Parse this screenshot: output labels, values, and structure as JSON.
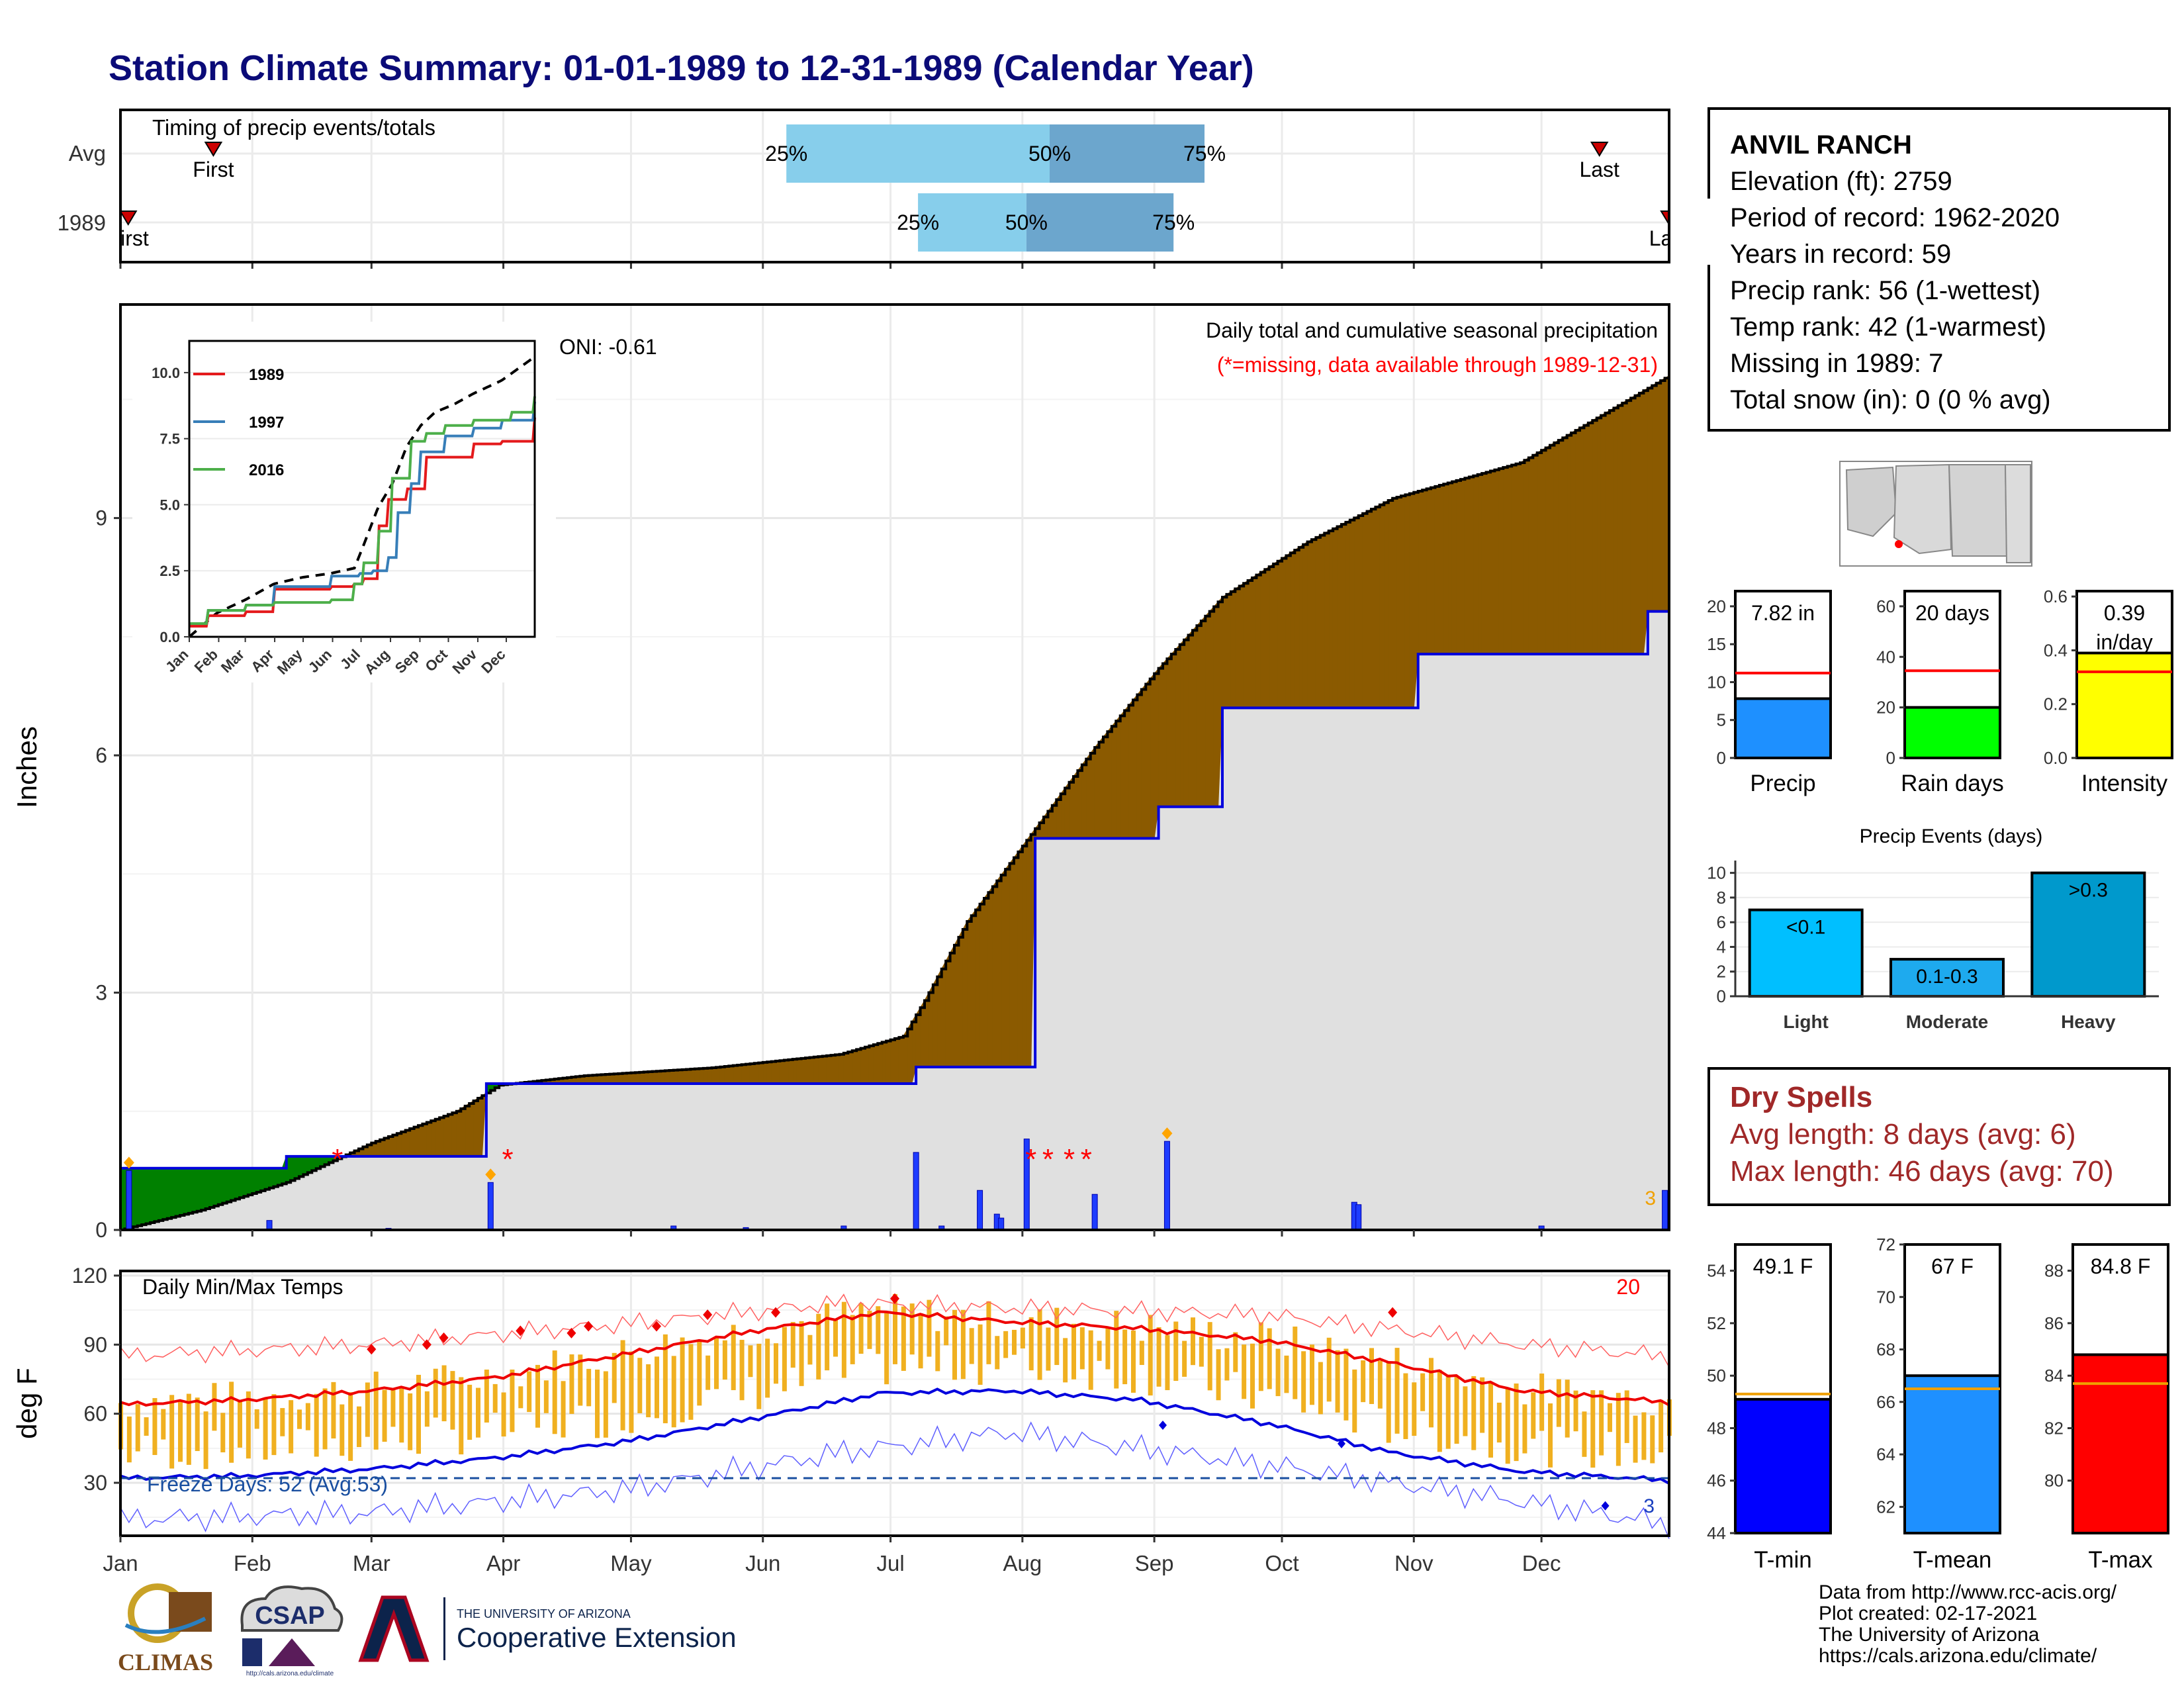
{
  "page_title": "Station Climate Summary: 01-01-1989 to 12-31-1989 (Calendar Year)",
  "timing_panel": {
    "title": "Timing of precip events/totals",
    "rows": [
      {
        "label": "Avg",
        "first_label": "First",
        "last_label": "Last",
        "first_day": 0.06,
        "last_day": 0.955,
        "p25": 0.43,
        "p50": 0.6,
        "p75": 0.7
      },
      {
        "label": "1989",
        "first_label": "First",
        "last_label": "Last",
        "first_day": 0.005,
        "last_day": 1.0,
        "p25": 0.515,
        "p50": 0.585,
        "p75": 0.68
      }
    ],
    "pct_labels": [
      "25%",
      "50%",
      "75%"
    ]
  },
  "station": {
    "name": "ANVIL RANCH",
    "lines": [
      "Elevation (ft): 2759",
      "Period of record: 1962-2020",
      "Years in record: 59",
      "Precip rank: 56 (1-wettest)",
      "Temp rank: 42 (1-warmest)",
      "Missing in 1989: 7",
      "Total snow (in): 0 (0 % avg)"
    ]
  },
  "precip_panel": {
    "ylabel": "Inches",
    "title": "Daily total and cumulative seasonal precipitation",
    "subtitle": "(*=missing, data available through 1989-12-31)",
    "oni": "ONI: -0.61",
    "corner_count": "3",
    "yticks": [
      "0",
      "3",
      "6",
      "9"
    ]
  },
  "month_labels": [
    "Jan",
    "Feb",
    "Mar",
    "Apr",
    "May",
    "Jun",
    "Jul",
    "Aug",
    "Sep",
    "Oct",
    "Nov",
    "Dec"
  ],
  "inset": {
    "legend": [
      "1989",
      "1997",
      "2016"
    ],
    "colors": [
      "#e41a1c",
      "#377eb8",
      "#4daf4a"
    ],
    "yticks": [
      "0.0",
      "2.5",
      "5.0",
      "7.5",
      "10.0"
    ],
    "xticks": [
      "Jan",
      "Feb",
      "Mar",
      "Apr",
      "May",
      "Jun",
      "Jul",
      "Aug",
      "Sep",
      "Oct",
      "Nov",
      "Dec"
    ]
  },
  "temp_panel": {
    "ylabel": "deg F",
    "title": "Daily Min/Max Temps",
    "freeze_text": "Freeze Days: 52 (Avg:53)",
    "hot_count": "20",
    "cold_count": "3",
    "yticks": [
      "30",
      "60",
      "90",
      "120"
    ]
  },
  "summary_bars": [
    {
      "label": "Precip",
      "value_text": "7.82 in",
      "value": 7.82,
      "avg": 11.2,
      "ymax": 22,
      "yticks": [
        "0",
        "5",
        "10",
        "15",
        "20"
      ],
      "color": "#1e90ff"
    },
    {
      "label": "Rain days",
      "value_text": "20 days",
      "value": 20,
      "avg": 34.5,
      "ymax": 66,
      "yticks": [
        "0",
        "20",
        "40",
        "60"
      ],
      "color": "#00ff00"
    },
    {
      "label": "Intensity",
      "value_text": "0.39 in/day",
      "value": 0.39,
      "avg": 0.32,
      "ymax": 0.62,
      "yticks": [
        "0.0",
        "0.2",
        "0.4",
        "0.6"
      ],
      "color": "#ffff00"
    }
  ],
  "precip_events": {
    "title": "Precip Events (days)",
    "categories": [
      "Light",
      "Moderate",
      "Heavy"
    ],
    "labels": [
      "<0.1",
      "0.1-0.3",
      ">0.3"
    ],
    "values": [
      7,
      3,
      10
    ],
    "colors": [
      "#00bfff",
      "#1eaaee",
      "#0099cc"
    ],
    "yticks": [
      "0",
      "2",
      "4",
      "6",
      "8",
      "10"
    ]
  },
  "dry_spells": {
    "title": "Dry Spells",
    "avg_text": "Avg length: 8 days (avg: 6)",
    "max_text": "Max length: 46 days (avg: 70)"
  },
  "temp_bars": [
    {
      "label": "T-min",
      "value_text": "49.1 F",
      "value": 49.1,
      "avg": 49.3,
      "ymin": 44,
      "ymax": 55,
      "yticks": [
        "44",
        "46",
        "48",
        "50",
        "52",
        "54"
      ],
      "color": "#0000ff"
    },
    {
      "label": "T-mean",
      "value_text": "67 F",
      "value": 67.0,
      "avg": 66.5,
      "ymin": 61,
      "ymax": 72,
      "yticks": [
        "62",
        "64",
        "66",
        "68",
        "70",
        "72"
      ],
      "color": "#1e90ff"
    },
    {
      "label": "T-max",
      "value_text": "84.8 F",
      "value": 84.8,
      "avg": 83.7,
      "ymin": 78,
      "ymax": 89,
      "yticks": [
        "80",
        "82",
        "84",
        "86",
        "88"
      ],
      "color": "#ff0000"
    }
  ],
  "footer": {
    "lines": [
      "Data from http://www.rcc-acis.org/",
      "Plot created: 02-17-2021",
      "The University of Arizona",
      "https://cals.arizona.edu/climate/"
    ],
    "logo_climas": "CLIMAS",
    "logo_csap": "CSAP",
    "logo_csap_url": "http://cals.arizona.edu/climate",
    "logo_ua_small": "THE UNIVERSITY OF ARIZONA",
    "logo_ua_big": "Cooperative Extension"
  },
  "chart_data": [
    {
      "type": "area",
      "name": "cumulative precipitation",
      "x_unit": "day of year",
      "series": [
        {
          "name": "1989 observed",
          "x": [
            1,
            10,
            20,
            30,
            40,
            50,
            60,
            70,
            80,
            84,
            87,
            120,
            150,
            175,
            185,
            188,
            212,
            216,
            245,
            260,
            290,
            306,
            330,
            355,
            360,
            365
          ],
          "values": [
            0.78,
            0.78,
            0.78,
            0.78,
            0.93,
            0.93,
            0.93,
            0.93,
            0.93,
            0.93,
            1.85,
            1.85,
            1.85,
            1.85,
            1.85,
            2.06,
            2.06,
            4.95,
            5.35,
            6.6,
            6.6,
            7.28,
            7.28,
            7.28,
            7.82,
            7.82
          ]
        },
        {
          "name": "average",
          "x": [
            1,
            20,
            40,
            60,
            80,
            90,
            110,
            140,
            170,
            185,
            190,
            200,
            215,
            230,
            245,
            260,
            280,
            300,
            330,
            365
          ],
          "values": [
            0.0,
            0.25,
            0.6,
            1.1,
            1.5,
            1.83,
            1.95,
            2.05,
            2.22,
            2.45,
            2.9,
            3.9,
            5.0,
            6.1,
            7.1,
            8.0,
            8.7,
            9.25,
            9.7,
            10.8
          ]
        }
      ],
      "daily_bars": {
        "x": [
          3,
          36,
          64,
          88,
          131,
          148,
          171,
          188,
          194,
          203,
          207,
          208,
          214,
          230,
          247,
          291,
          292,
          335,
          364
        ],
        "values": [
          0.75,
          0.12,
          0.02,
          0.6,
          0.05,
          0.03,
          0.05,
          0.98,
          0.05,
          0.5,
          0.2,
          0.15,
          1.15,
          0.45,
          1.12,
          0.35,
          0.32,
          0.05,
          0.5
        ]
      },
      "ylim": [
        0,
        11.7
      ]
    },
    {
      "type": "line",
      "name": "cumulative precipitation inset",
      "x_unit": "day of year",
      "series": [
        {
          "name": "avg",
          "x": [
            1,
            30,
            60,
            90,
            120,
            150,
            175,
            185,
            200,
            215,
            230,
            245,
            260,
            280,
            300,
            330,
            365
          ],
          "values": [
            0.0,
            0.9,
            1.4,
            2.0,
            2.25,
            2.4,
            2.6,
            3.5,
            4.9,
            5.8,
            7.2,
            8.0,
            8.5,
            8.8,
            9.2,
            9.7,
            10.6
          ]
        },
        {
          "name": "1989",
          "x": [
            1,
            20,
            60,
            90,
            150,
            175,
            185,
            200,
            210,
            230,
            250,
            300,
            330,
            365
          ],
          "values": [
            0.4,
            0.8,
            0.95,
            1.8,
            1.9,
            2.0,
            2.2,
            4.2,
            5.2,
            5.6,
            6.8,
            7.3,
            7.4,
            8.3
          ]
        },
        {
          "name": "1997",
          "x": [
            1,
            20,
            60,
            90,
            150,
            180,
            195,
            210,
            220,
            235,
            245,
            270,
            300,
            330,
            365
          ],
          "values": [
            0.5,
            1.0,
            1.2,
            1.9,
            2.3,
            2.4,
            2.5,
            3.0,
            4.7,
            5.8,
            7.0,
            7.6,
            7.9,
            8.2,
            8.9
          ]
        },
        {
          "name": "2016",
          "x": [
            1,
            20,
            60,
            90,
            150,
            175,
            185,
            200,
            215,
            235,
            250,
            270,
            300,
            340,
            365
          ],
          "values": [
            0.5,
            1.0,
            1.2,
            1.3,
            1.4,
            2.0,
            2.8,
            4.0,
            6.0,
            7.4,
            7.7,
            8.0,
            8.2,
            8.5,
            9.1
          ]
        }
      ],
      "ylim": [
        0,
        11.2
      ]
    },
    {
      "type": "line",
      "name": "daily temperatures",
      "x_unit": "day of year",
      "series": [
        {
          "name": "avg max",
          "x": [
            1,
            30,
            60,
            90,
            120,
            150,
            180,
            210,
            240,
            270,
            300,
            330,
            365
          ],
          "values": [
            64,
            66,
            70,
            76,
            86,
            96,
            104,
            100,
            97,
            92,
            82,
            70,
            65
          ]
        },
        {
          "name": "avg min",
          "x": [
            1,
            30,
            60,
            90,
            120,
            150,
            180,
            210,
            240,
            270,
            300,
            330,
            365
          ],
          "values": [
            32,
            33,
            36,
            41,
            48,
            58,
            69,
            70,
            66,
            56,
            43,
            35,
            31
          ]
        },
        {
          "name": "record high",
          "x": [
            1,
            60,
            120,
            170,
            210,
            270,
            330,
            365
          ],
          "values": [
            85,
            90,
            99,
            108,
            106,
            103,
            90,
            85
          ]
        },
        {
          "name": "record low",
          "x": [
            1,
            60,
            120,
            170,
            210,
            270,
            330,
            365
          ],
          "values": [
            14,
            17,
            27,
            43,
            52,
            38,
            22,
            12
          ]
        }
      ],
      "freeze_line": 32,
      "ylim": [
        7,
        122
      ]
    },
    {
      "type": "bar",
      "name": "precip events",
      "categories": [
        "Light",
        "Moderate",
        "Heavy"
      ],
      "values": [
        7,
        3,
        10
      ]
    }
  ]
}
